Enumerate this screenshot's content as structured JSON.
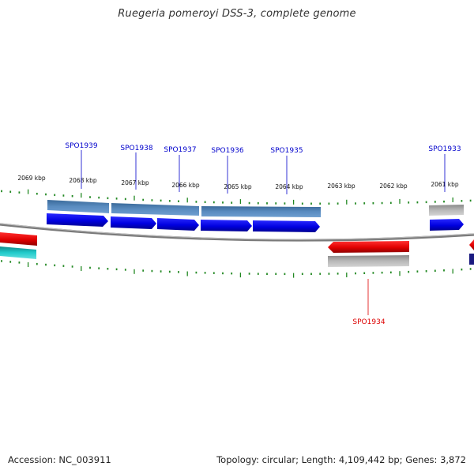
{
  "title": "Ruegeria pomeroyi DSS-3, complete genome",
  "footer": {
    "accession": "Accession: NC_003911",
    "summary": "Topology: circular; Length: 4,109,442 bp; Genes: 3,872"
  },
  "colors": {
    "forward_cds": "#0000ee",
    "reverse_cds": "#ee0000",
    "forward_band": "#4a7fb5",
    "gray_band": "#b4b4b4",
    "cyan_band": "#22cccc",
    "navy_band": "#1a1a80",
    "backbone": "#888888",
    "tick": "#228822",
    "forward_label": "#0000cc",
    "reverse_label": "#dd0000"
  },
  "scale_labels": [
    "2069 kbp",
    "2068 kbp",
    "2067 kbp",
    "2066 kbp",
    "2065 kbp",
    "2064 kbp",
    "2063 kbp",
    "2062 kbp",
    "2061 kbp"
  ],
  "genes": [
    {
      "label": "SPO1939",
      "strand": "forward"
    },
    {
      "label": "SPO1938",
      "strand": "forward"
    },
    {
      "label": "SPO1937",
      "strand": "forward"
    },
    {
      "label": "SPO1936",
      "strand": "forward"
    },
    {
      "label": "SPO1935",
      "strand": "forward"
    },
    {
      "label": "SPO1933",
      "strand": "forward"
    },
    {
      "label": "SPO1934",
      "strand": "reverse"
    }
  ]
}
